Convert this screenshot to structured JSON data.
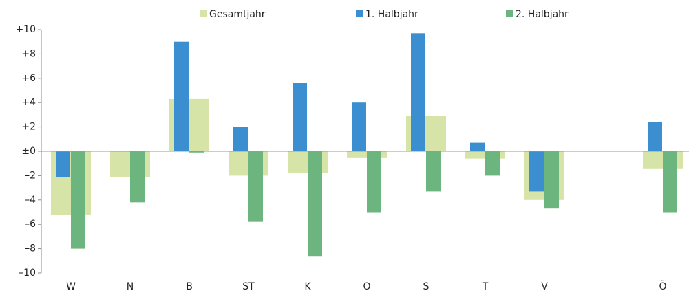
{
  "chart_data": {
    "type": "bar",
    "categories": [
      "W",
      "N",
      "B",
      "ST",
      "K",
      "O",
      "S",
      "T",
      "V",
      null,
      "Ö"
    ],
    "series": [
      {
        "name": "Gesamtjahr",
        "color": "#d6e4a7",
        "values": [
          -5.2,
          -2.1,
          4.3,
          -2.0,
          -1.8,
          -0.5,
          2.9,
          -0.6,
          -4.0,
          null,
          -1.4
        ]
      },
      {
        "name": "1. Halbjahr",
        "color": "#3b8fd0",
        "values": [
          -2.1,
          null,
          9.0,
          2.0,
          5.6,
          4.0,
          9.7,
          0.7,
          -3.3,
          null,
          2.4
        ]
      },
      {
        "name": "2. Halbjahr",
        "color": "#6db57f",
        "values": [
          -8.0,
          -4.2,
          -0.1,
          -5.8,
          -8.6,
          -5.0,
          -3.3,
          -2.0,
          -4.7,
          null,
          -5.0
        ]
      }
    ],
    "ylim": [
      -10,
      10
    ],
    "yticks": [
      {
        "value": -10,
        "label": "–10"
      },
      {
        "value": -8,
        "label": "–8"
      },
      {
        "value": -6,
        "label": "–6"
      },
      {
        "value": -4,
        "label": "–4"
      },
      {
        "value": -2,
        "label": "–2"
      },
      {
        "value": 0,
        "label": "±0"
      },
      {
        "value": 2,
        "label": "+2"
      },
      {
        "value": 4,
        "label": "+4"
      },
      {
        "value": 6,
        "label": "+6"
      },
      {
        "value": 8,
        "label": "+8"
      },
      {
        "value": 10,
        "label": "+10"
      }
    ]
  }
}
